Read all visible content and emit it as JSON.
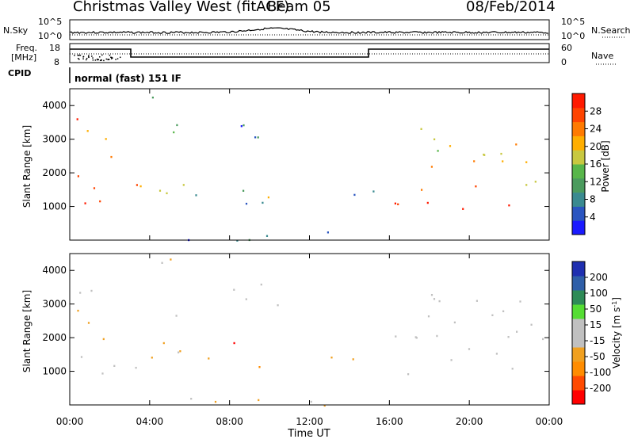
{
  "header": {
    "station": "Christmas Valley West (fitACF)",
    "beam": "Beam 05",
    "date": "08/Feb/2014"
  },
  "status_panels": {
    "nsky_label": "N.Sky",
    "nsky_scale_top": "10^5",
    "nsky_scale_bottom": "10^0",
    "nsearch_label": "N.Search",
    "nsearch_scale_top": "10^5",
    "nsearch_scale_bottom": "10^0",
    "freq_label_1": "Freq.",
    "freq_label_2": "[MHz]",
    "freq_tick_top": "18",
    "freq_tick_bottom": "8",
    "nave_label": "Nave",
    "nave_tick_top": "60",
    "nave_tick_bottom": "0",
    "cpid_label": "CPID",
    "cpid_value": "normal (fast) 151 IF"
  },
  "colors": {
    "power_scale": [
      "#1a1aff",
      "#2a55c0",
      "#3a8a90",
      "#4b9b5e",
      "#58b64a",
      "#c8c840",
      "#ffae00",
      "#ff7a00",
      "#ff4400",
      "#ff1a00"
    ],
    "velocity_scale": [
      "#ff0000",
      "#ff4a00",
      "#ff8c00",
      "#f0a020",
      "#c0c0c0",
      "#c0c0c0",
      "#55dd33",
      "#2e8b57",
      "#2f5fa8",
      "#1f2fb0"
    ]
  },
  "chart_data": [
    {
      "type": "heatmap",
      "name": "power-panel",
      "xlabel": "Time UT",
      "ylabel": "Slant Range [km]",
      "x_ticks": [
        "00:00",
        "04:00",
        "08:00",
        "12:00",
        "16:00",
        "20:00",
        "00:00"
      ],
      "y_ticks": [
        "1000",
        "2000",
        "3000",
        "4000"
      ],
      "ylim": [
        0,
        4500
      ],
      "colorbar_label": "Power [dB]",
      "colorbar_ticks": [
        "4",
        "8",
        "12",
        "16",
        "20",
        "24",
        "28"
      ],
      "colorbar_range": [
        0,
        30
      ],
      "regions": [
        {
          "t0": 0.0,
          "t1": 3.0,
          "r0": 900,
          "r1": 1400,
          "level": 28
        },
        {
          "t0": 0.2,
          "t1": 2.6,
          "r0": 1400,
          "r1": 2000,
          "level": 24
        },
        {
          "t0": 0.2,
          "t1": 3.0,
          "r0": 2400,
          "r1": 3700,
          "level": 24
        },
        {
          "t0": 3.0,
          "t1": 5.7,
          "r0": 1000,
          "r1": 2500,
          "level": 20
        },
        {
          "t0": 4.0,
          "t1": 5.5,
          "r0": 2600,
          "r1": 4400,
          "level": 14
        },
        {
          "t0": 5.2,
          "t1": 7.0,
          "r0": 1200,
          "r1": 1600,
          "level": 6
        },
        {
          "t0": 7.0,
          "t1": 11.0,
          "r0": 1050,
          "r1": 1700,
          "level": 10
        },
        {
          "t0": 8.0,
          "t1": 10.0,
          "r0": 1200,
          "r1": 1500,
          "level": 20
        },
        {
          "t0": 7.8,
          "t1": 11.0,
          "r0": 2600,
          "r1": 3700,
          "level": 6
        },
        {
          "t0": 11.0,
          "t1": 15.3,
          "r0": 1150,
          "r1": 1500,
          "level": 5
        },
        {
          "t0": 16.2,
          "t1": 24.0,
          "r0": 900,
          "r1": 1500,
          "level": 28
        },
        {
          "t0": 17.0,
          "t1": 24.0,
          "r0": 1500,
          "r1": 2500,
          "level": 22
        },
        {
          "t0": 17.5,
          "t1": 24.0,
          "r0": 2500,
          "r1": 3600,
          "level": 18
        },
        {
          "t0": 5.0,
          "t1": 16.0,
          "r0": 0,
          "r1": 400,
          "level": 6
        }
      ]
    },
    {
      "type": "heatmap",
      "name": "velocity-panel",
      "xlabel": "Time UT",
      "ylabel": "Slant Range [km]",
      "x_ticks": [
        "00:00",
        "04:00",
        "08:00",
        "12:00",
        "16:00",
        "20:00",
        "00:00"
      ],
      "y_ticks": [
        "1000",
        "2000",
        "3000",
        "4000"
      ],
      "ylim": [
        0,
        4500
      ],
      "colorbar_label": "Velocity [m s^-1]",
      "colorbar_ticks": [
        "200",
        "100",
        "50",
        "15",
        "-15",
        "-50",
        "-100",
        "-200"
      ],
      "colorbar_range": [
        -250,
        250
      ],
      "regions": [
        {
          "t0": 0.0,
          "t1": 3.0,
          "r0": 900,
          "r1": 1400,
          "level": 0
        },
        {
          "t0": 0.2,
          "t1": 3.0,
          "r0": 2400,
          "r1": 3700,
          "level": -60
        },
        {
          "t0": 0.2,
          "t1": 2.6,
          "r0": 1400,
          "r1": 2000,
          "level": -40
        },
        {
          "t0": 3.0,
          "t1": 5.7,
          "r0": 1000,
          "r1": 2500,
          "level": -60
        },
        {
          "t0": 4.0,
          "t1": 5.5,
          "r0": 2600,
          "r1": 4400,
          "level": -40
        },
        {
          "t0": 6.5,
          "t1": 11.0,
          "r0": 1150,
          "r1": 1500,
          "level": -90
        },
        {
          "t0": 8.0,
          "t1": 9.8,
          "r0": 1500,
          "r1": 2200,
          "level": -220
        },
        {
          "t0": 7.8,
          "t1": 11.0,
          "r0": 2600,
          "r1": 3700,
          "level": 0
        },
        {
          "t0": 11.0,
          "t1": 15.3,
          "r0": 1150,
          "r1": 1500,
          "level": -70
        },
        {
          "t0": 16.2,
          "t1": 24.0,
          "r0": 900,
          "r1": 2500,
          "level": 0
        },
        {
          "t0": 17.5,
          "t1": 24.0,
          "r0": 2500,
          "r1": 3600,
          "level": 0
        },
        {
          "t0": 5.0,
          "t1": 16.0,
          "r0": 0,
          "r1": 400,
          "level": -40
        }
      ]
    }
  ]
}
